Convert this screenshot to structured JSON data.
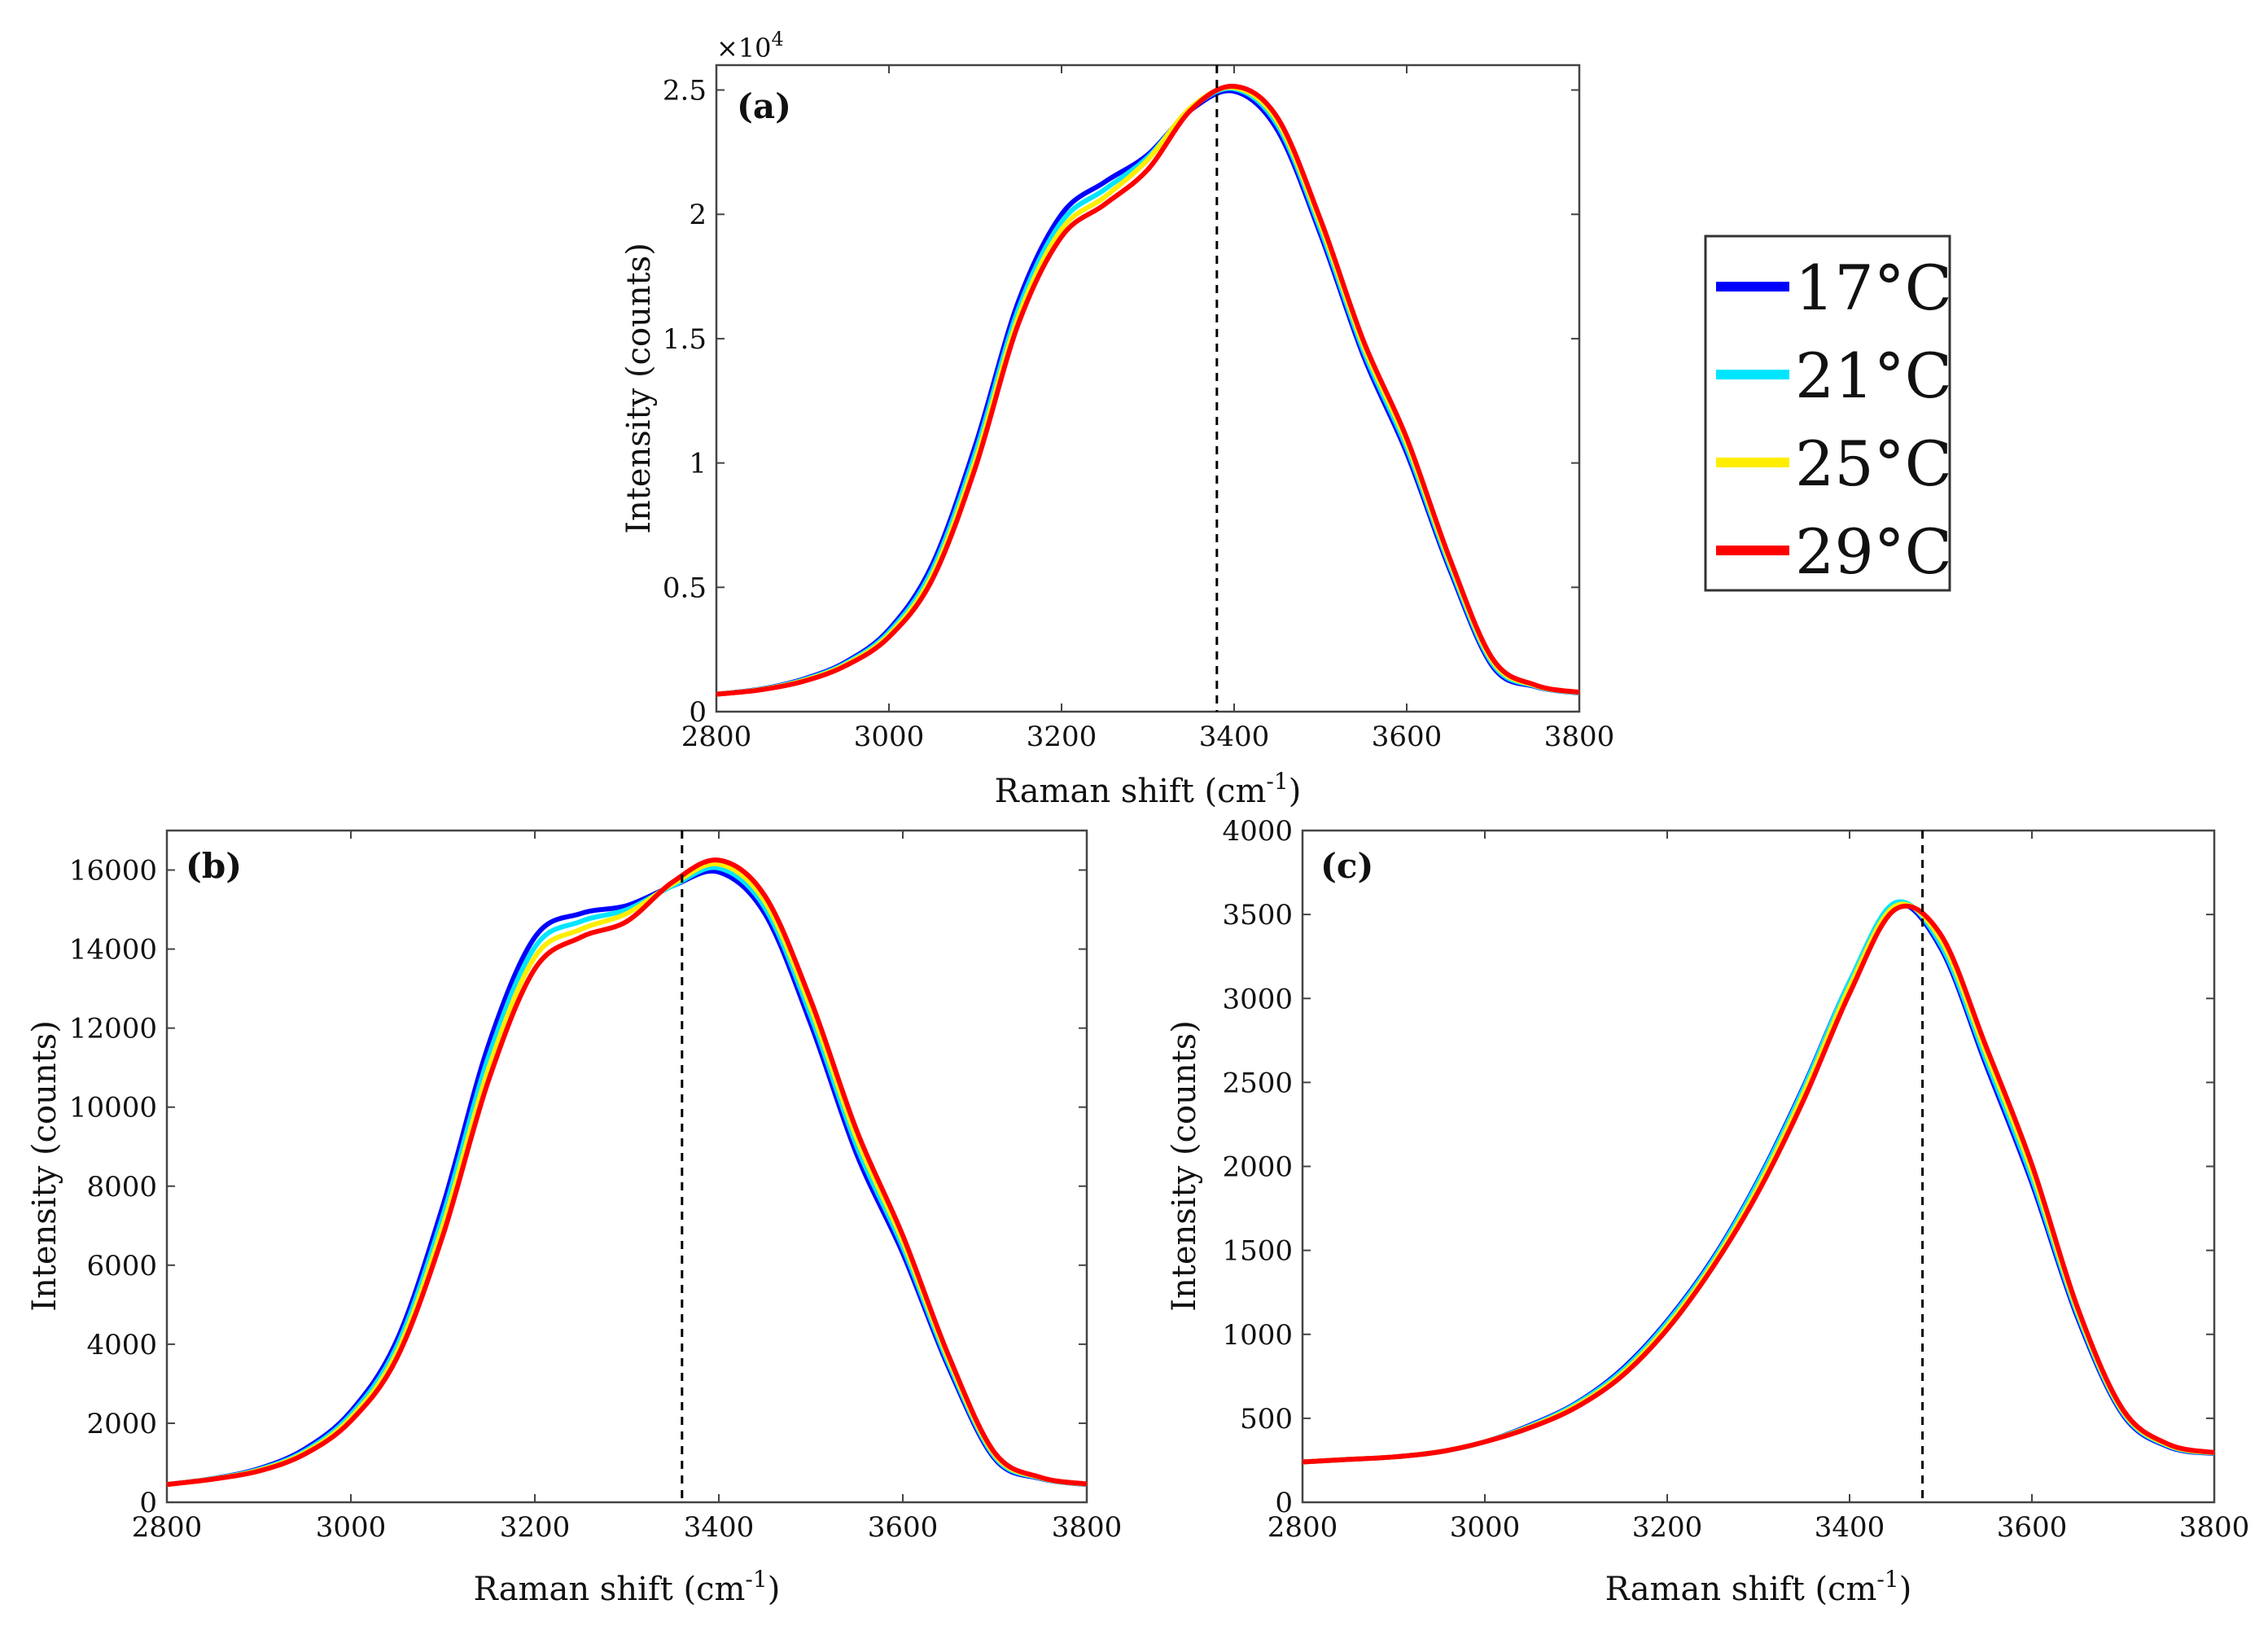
{
  "legend": {
    "items": [
      {
        "label": "17°C",
        "color": "#0000ff"
      },
      {
        "label": "21°C",
        "color": "#00e5ff"
      },
      {
        "label": "25°C",
        "color": "#ffee00"
      },
      {
        "label": "29°C",
        "color": "#ff0000"
      }
    ]
  },
  "chart_data": [
    {
      "type": "line",
      "panel_label": "(a)",
      "xlabel": "Raman shift (cm",
      "xlabel_sup": "-1",
      "xlabel_end": ")",
      "ylabel": "Intensity (counts)",
      "xlim": [
        2800,
        3800
      ],
      "ylim": [
        0,
        26000
      ],
      "xticks": [
        2800,
        3000,
        3200,
        3400,
        3600,
        3800
      ],
      "yticks": [
        0,
        5000,
        10000,
        15000,
        20000,
        25000
      ],
      "ytick_labels": [
        "0",
        "0.5",
        "1",
        "1.5",
        "2",
        "2.5"
      ],
      "y_exponent_label": "×10",
      "y_exponent_sup": "4",
      "vline_x": 3380,
      "x": [
        2800,
        2850,
        2900,
        2950,
        3000,
        3050,
        3100,
        3150,
        3200,
        3250,
        3300,
        3350,
        3400,
        3450,
        3500,
        3550,
        3600,
        3650,
        3700,
        3750,
        3800
      ],
      "series": [
        {
          "name": "17°C",
          "color": "#0000ff",
          "values": [
            700,
            900,
            1300,
            2000,
            3300,
            5900,
            10700,
            16500,
            20000,
            21300,
            22400,
            24200,
            24950,
            23400,
            19200,
            14300,
            10400,
            5700,
            1800,
            1000,
            750
          ]
        },
        {
          "name": "21°C",
          "color": "#00e5ff",
          "values": [
            700,
            890,
            1270,
            1950,
            3200,
            5700,
            10400,
            16200,
            19700,
            21000,
            22300,
            24250,
            25050,
            23600,
            19400,
            14500,
            10600,
            5850,
            1900,
            1020,
            760
          ]
        },
        {
          "name": "25°C",
          "color": "#ffee00",
          "values": [
            700,
            880,
            1240,
            1900,
            3100,
            5500,
            10100,
            15900,
            19400,
            20700,
            22200,
            24300,
            25100,
            23750,
            19600,
            14700,
            10800,
            6000,
            2000,
            1040,
            770
          ]
        },
        {
          "name": "29°C",
          "color": "#ff0000",
          "values": [
            700,
            870,
            1210,
            1850,
            3000,
            5300,
            9800,
            15600,
            19100,
            20400,
            21800,
            24200,
            25150,
            23900,
            19800,
            14900,
            11000,
            6150,
            2100,
            1060,
            780
          ]
        }
      ]
    },
    {
      "type": "line",
      "panel_label": "(b)",
      "xlabel": "Raman shift (cm",
      "xlabel_sup": "-1",
      "xlabel_end": ")",
      "ylabel": "Intensity (counts)",
      "xlim": [
        2800,
        3800
      ],
      "ylim": [
        0,
        17000
      ],
      "xticks": [
        2800,
        3000,
        3200,
        3400,
        3600,
        3800
      ],
      "yticks": [
        0,
        2000,
        4000,
        6000,
        8000,
        10000,
        12000,
        14000,
        16000
      ],
      "ytick_labels": [
        "0",
        "2000",
        "4000",
        "6000",
        "8000",
        "10000",
        "12000",
        "14000",
        "16000"
      ],
      "vline_x": 3360,
      "x": [
        2800,
        2850,
        2900,
        2950,
        3000,
        3050,
        3100,
        3150,
        3200,
        3250,
        3300,
        3350,
        3400,
        3450,
        3500,
        3550,
        3600,
        3650,
        3700,
        3750,
        3800
      ],
      "series": [
        {
          "name": "17°C",
          "color": "#0000ff",
          "values": [
            450,
            600,
            850,
            1350,
            2300,
            4100,
            7500,
            11600,
            14300,
            14900,
            15100,
            15600,
            15950,
            14900,
            12100,
            8800,
            6300,
            3400,
            1100,
            600,
            450
          ]
        },
        {
          "name": "21°C",
          "color": "#00e5ff",
          "values": [
            450,
            595,
            830,
            1300,
            2220,
            3950,
            7250,
            11300,
            14050,
            14700,
            15000,
            15600,
            16050,
            15050,
            12300,
            9000,
            6450,
            3500,
            1150,
            610,
            455
          ]
        },
        {
          "name": "25°C",
          "color": "#ffee00",
          "values": [
            450,
            590,
            810,
            1260,
            2140,
            3800,
            7000,
            11000,
            13800,
            14500,
            14900,
            15650,
            16150,
            15200,
            12500,
            9200,
            6600,
            3600,
            1200,
            620,
            460
          ]
        },
        {
          "name": "29°C",
          "color": "#ff0000",
          "values": [
            450,
            585,
            790,
            1220,
            2060,
            3650,
            6750,
            10700,
            13500,
            14300,
            14700,
            15700,
            16250,
            15350,
            12700,
            9400,
            6750,
            3700,
            1250,
            630,
            465
          ]
        }
      ]
    },
    {
      "type": "line",
      "panel_label": "(c)",
      "xlabel": "Raman shift (cm",
      "xlabel_sup": "-1",
      "xlabel_end": ")",
      "ylabel": "Intensity (counts)",
      "xlim": [
        2800,
        3800
      ],
      "ylim": [
        0,
        4000
      ],
      "xticks": [
        2800,
        3000,
        3200,
        3400,
        3600,
        3800
      ],
      "yticks": [
        0,
        500,
        1000,
        1500,
        2000,
        2500,
        3000,
        3500,
        4000
      ],
      "ytick_labels": [
        "0",
        "500",
        "1000",
        "1500",
        "2000",
        "2500",
        "3000",
        "3500",
        "4000"
      ],
      "vline_x": 3480,
      "x": [
        2800,
        2850,
        2900,
        2950,
        3000,
        3050,
        3100,
        3150,
        3200,
        3250,
        3300,
        3350,
        3400,
        3450,
        3500,
        3550,
        3600,
        3650,
        3700,
        3750,
        3800
      ],
      "series": [
        {
          "name": "17°C",
          "color": "#0000ff",
          "values": [
            240,
            255,
            270,
            300,
            360,
            460,
            590,
            790,
            1080,
            1450,
            1920,
            2480,
            3100,
            3560,
            3300,
            2600,
            1900,
            1100,
            520,
            330,
            290
          ]
        },
        {
          "name": "21°C",
          "color": "#00e5ff",
          "values": [
            240,
            255,
            270,
            300,
            360,
            455,
            585,
            780,
            1070,
            1440,
            1910,
            2470,
            3100,
            3570,
            3320,
            2630,
            1930,
            1120,
            530,
            335,
            292
          ]
        },
        {
          "name": "25°C",
          "color": "#ffee00",
          "values": [
            240,
            255,
            270,
            300,
            360,
            450,
            575,
            765,
            1050,
            1420,
            1880,
            2440,
            3070,
            3550,
            3350,
            2670,
            1970,
            1140,
            540,
            340,
            294
          ]
        },
        {
          "name": "29°C",
          "color": "#ff0000",
          "values": [
            240,
            255,
            270,
            300,
            360,
            445,
            565,
            750,
            1030,
            1400,
            1850,
            2400,
            3030,
            3530,
            3380,
            2710,
            2010,
            1160,
            550,
            345,
            296
          ]
        }
      ]
    }
  ]
}
